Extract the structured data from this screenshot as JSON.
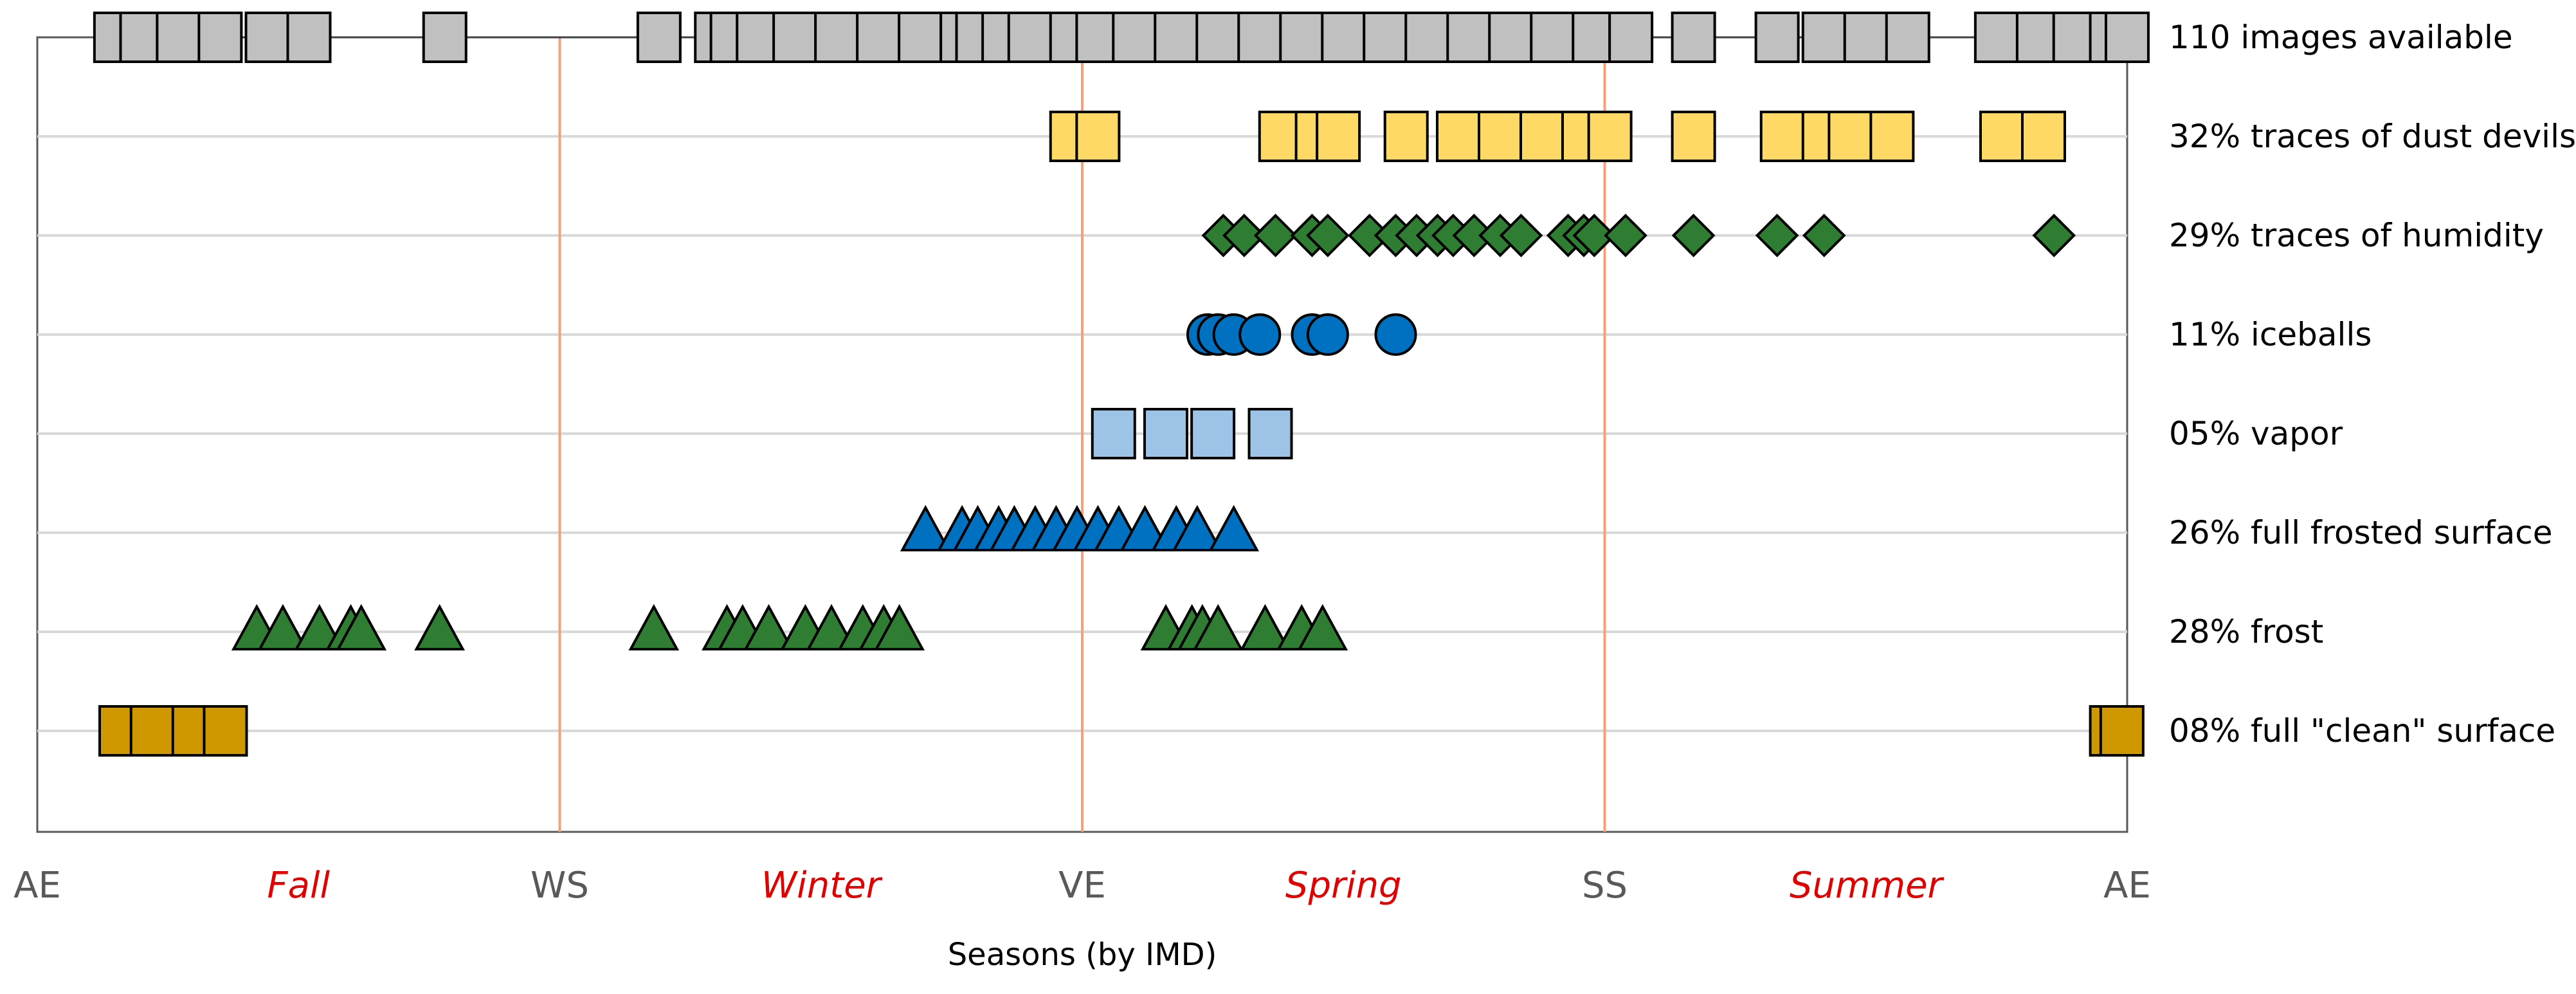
{
  "chart_data": {
    "type": "scatter",
    "title": "",
    "xlabel": "Seasons (by IMD)",
    "ylabel": "",
    "xlim": [
      0,
      4
    ],
    "grid": true,
    "seasonal_markers": [
      {
        "label": "AE",
        "x": 0
      },
      {
        "label": "WS",
        "x": 1
      },
      {
        "label": "VE",
        "x": 2
      },
      {
        "label": "SS",
        "x": 3
      },
      {
        "label": "AE",
        "x": 4
      }
    ],
    "season_names": [
      {
        "label": "Fall",
        "x": 0.5
      },
      {
        "label": "Winter",
        "x": 1.5
      },
      {
        "label": "Spring",
        "x": 2.5
      },
      {
        "label": "Summer",
        "x": 3.5
      }
    ],
    "series": [
      {
        "name": "110 images available",
        "marker": "square",
        "color": "#c0c0c0",
        "connected": true,
        "x": [
          0.15,
          0.2,
          0.27,
          0.35,
          0.44,
          0.52,
          0.78,
          1.19,
          1.3,
          1.33,
          1.38,
          1.45,
          1.53,
          1.61,
          1.69,
          1.77,
          1.8,
          1.85,
          1.9,
          1.98,
          2.03,
          2.1,
          2.18,
          2.26,
          2.34,
          2.42,
          2.5,
          2.58,
          2.66,
          2.74,
          2.82,
          2.9,
          2.98,
          3.05,
          3.17,
          3.33,
          3.42,
          3.5,
          3.58,
          3.75,
          3.83,
          3.9,
          3.97,
          4.0
        ]
      },
      {
        "name": "32% traces of dust devils",
        "marker": "square",
        "color": "#ffd966",
        "x": [
          1.98,
          2.03,
          2.38,
          2.45,
          2.49,
          2.62,
          2.72,
          2.8,
          2.88,
          2.96,
          3.01,
          3.17,
          3.34,
          3.42,
          3.47,
          3.55,
          3.76,
          3.84
        ]
      },
      {
        "name": "29% traces of humidity",
        "marker": "diamond",
        "color": "#2e7d32",
        "x": [
          2.27,
          2.31,
          2.37,
          2.44,
          2.47,
          2.55,
          2.6,
          2.64,
          2.68,
          2.71,
          2.75,
          2.8,
          2.84,
          2.93,
          2.96,
          2.98,
          3.04,
          3.17,
          3.33,
          3.42,
          3.86
        ]
      },
      {
        "name": "11% iceballs",
        "marker": "circle",
        "color": "#0070c0",
        "x": [
          2.24,
          2.26,
          2.29,
          2.34,
          2.44,
          2.47,
          2.6
        ]
      },
      {
        "name": "05% vapor",
        "marker": "square",
        "color": "#9dc3e6",
        "x": [
          2.06,
          2.16,
          2.25,
          2.36
        ]
      },
      {
        "name": "26% full frosted surface",
        "marker": "triangle",
        "color": "#0070c0",
        "x": [
          1.7,
          1.77,
          1.8,
          1.84,
          1.87,
          1.91,
          1.95,
          1.99,
          2.03,
          2.07,
          2.12,
          2.18,
          2.22,
          2.29
        ]
      },
      {
        "name": "28% frost",
        "marker": "triangle",
        "color": "#2e7d32",
        "x": [
          0.42,
          0.47,
          0.54,
          0.6,
          0.62,
          0.77,
          1.18,
          1.32,
          1.35,
          1.4,
          1.47,
          1.52,
          1.58,
          1.62,
          1.65,
          2.16,
          2.21,
          2.23,
          2.26,
          2.35,
          2.42,
          2.46
        ]
      },
      {
        "name": "08% full \"clean\" surface",
        "marker": "square",
        "color": "#d09800",
        "x": [
          0.16,
          0.22,
          0.3,
          0.36,
          3.97,
          3.99
        ]
      }
    ]
  }
}
